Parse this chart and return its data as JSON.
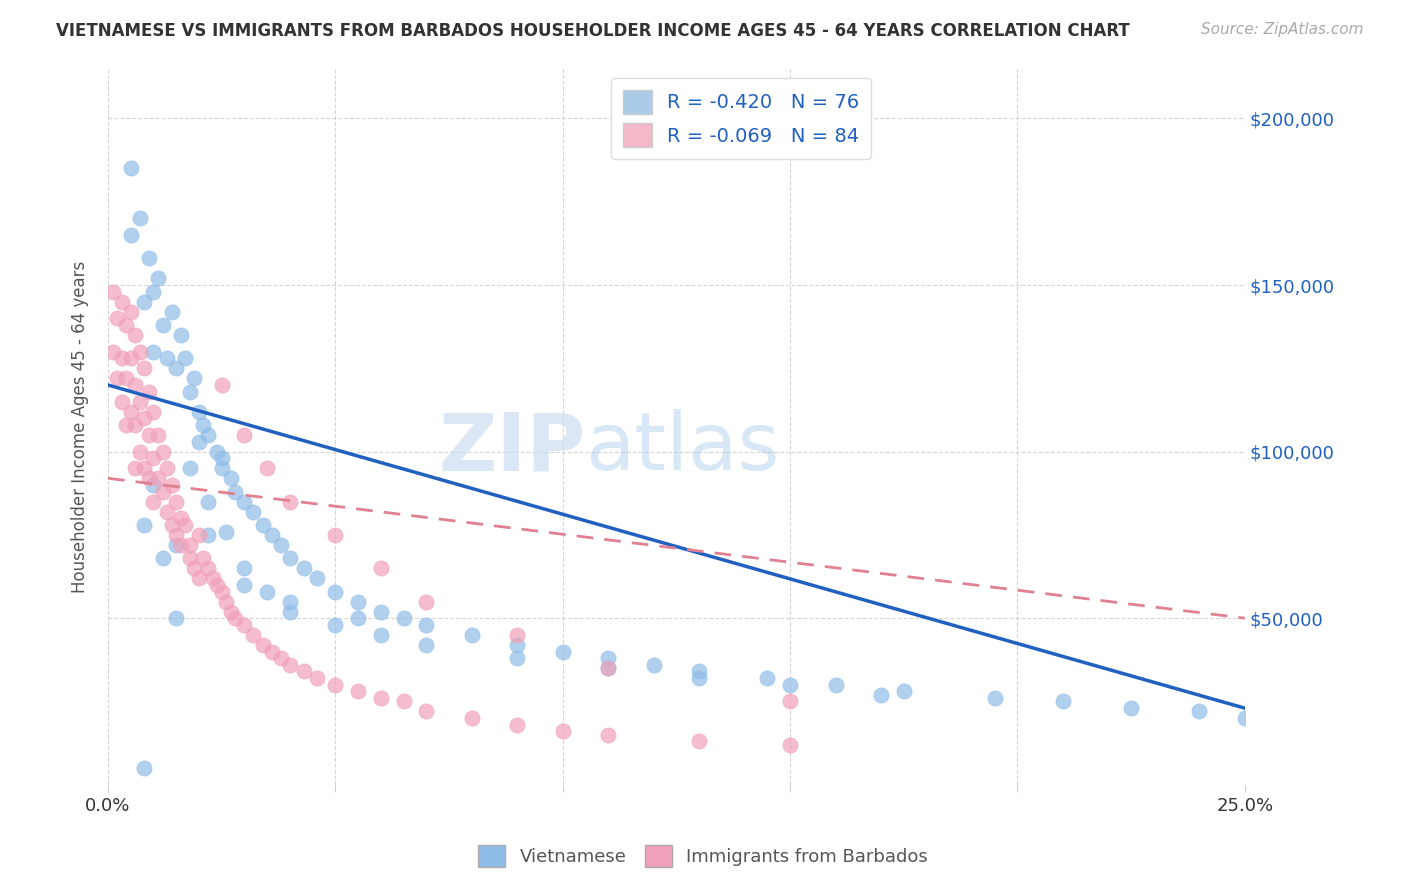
{
  "title": "VIETNAMESE VS IMMIGRANTS FROM BARBADOS HOUSEHOLDER INCOME AGES 45 - 64 YEARS CORRELATION CHART",
  "source": "Source: ZipAtlas.com",
  "ylabel": "Householder Income Ages 45 - 64 years",
  "watermark_zip": "ZIP",
  "watermark_atlas": "atlas",
  "legend_entries": [
    {
      "label": "Vietnamese",
      "color": "#aacce8",
      "R": "-0.420",
      "N": "76"
    },
    {
      "label": "Immigrants from Barbados",
      "color": "#f4b8c8",
      "R": "-0.069",
      "N": "84"
    }
  ],
  "viet_color": "#90bce8",
  "barb_color": "#f0a0b8",
  "viet_line_color": "#2060c0",
  "barb_line_color": "#e08090",
  "background": "#ffffff",
  "grid_color": "#cccccc",
  "ytick_labels": [
    "$50,000",
    "$100,000",
    "$150,000",
    "$200,000"
  ],
  "ytick_values": [
    50000,
    100000,
    150000,
    200000
  ],
  "xlim": [
    0.0,
    0.25
  ],
  "ylim": [
    0,
    215000
  ],
  "viet_line_x0": 0.0,
  "viet_line_y0": 120000,
  "viet_line_x1": 0.25,
  "viet_line_y1": 23000,
  "barb_line_x0": 0.0,
  "barb_line_y0": 92000,
  "barb_line_x1": 0.25,
  "barb_line_y1": 50000,
  "viet_x": [
    0.005,
    0.005,
    0.007,
    0.008,
    0.009,
    0.01,
    0.01,
    0.011,
    0.012,
    0.013,
    0.014,
    0.015,
    0.016,
    0.017,
    0.018,
    0.019,
    0.02,
    0.021,
    0.022,
    0.024,
    0.025,
    0.027,
    0.028,
    0.03,
    0.032,
    0.034,
    0.036,
    0.038,
    0.04,
    0.043,
    0.046,
    0.05,
    0.055,
    0.06,
    0.065,
    0.07,
    0.08,
    0.09,
    0.1,
    0.11,
    0.12,
    0.13,
    0.145,
    0.16,
    0.175,
    0.195,
    0.21,
    0.225,
    0.24,
    0.25,
    0.008,
    0.01,
    0.012,
    0.015,
    0.018,
    0.022,
    0.026,
    0.03,
    0.035,
    0.04,
    0.05,
    0.06,
    0.07,
    0.09,
    0.11,
    0.13,
    0.15,
    0.17,
    0.02,
    0.025,
    0.008,
    0.015,
    0.022,
    0.03,
    0.04,
    0.055
  ],
  "viet_y": [
    185000,
    165000,
    170000,
    145000,
    158000,
    148000,
    130000,
    152000,
    138000,
    128000,
    142000,
    125000,
    135000,
    128000,
    118000,
    122000,
    112000,
    108000,
    105000,
    100000,
    98000,
    92000,
    88000,
    85000,
    82000,
    78000,
    75000,
    72000,
    68000,
    65000,
    62000,
    58000,
    55000,
    52000,
    50000,
    48000,
    45000,
    42000,
    40000,
    38000,
    36000,
    34000,
    32000,
    30000,
    28000,
    26000,
    25000,
    23000,
    22000,
    20000,
    78000,
    90000,
    68000,
    72000,
    95000,
    85000,
    76000,
    65000,
    58000,
    52000,
    48000,
    45000,
    42000,
    38000,
    35000,
    32000,
    30000,
    27000,
    103000,
    95000,
    5000,
    50000,
    75000,
    60000,
    55000,
    50000
  ],
  "barb_x": [
    0.001,
    0.001,
    0.002,
    0.002,
    0.003,
    0.003,
    0.003,
    0.004,
    0.004,
    0.004,
    0.005,
    0.005,
    0.005,
    0.006,
    0.006,
    0.006,
    0.006,
    0.007,
    0.007,
    0.007,
    0.008,
    0.008,
    0.008,
    0.009,
    0.009,
    0.009,
    0.01,
    0.01,
    0.01,
    0.011,
    0.011,
    0.012,
    0.012,
    0.013,
    0.013,
    0.014,
    0.014,
    0.015,
    0.015,
    0.016,
    0.016,
    0.017,
    0.018,
    0.018,
    0.019,
    0.02,
    0.02,
    0.021,
    0.022,
    0.023,
    0.024,
    0.025,
    0.026,
    0.027,
    0.028,
    0.03,
    0.032,
    0.034,
    0.036,
    0.038,
    0.04,
    0.043,
    0.046,
    0.05,
    0.055,
    0.06,
    0.065,
    0.07,
    0.08,
    0.09,
    0.1,
    0.11,
    0.13,
    0.15,
    0.025,
    0.03,
    0.035,
    0.04,
    0.05,
    0.06,
    0.07,
    0.09,
    0.11,
    0.15
  ],
  "barb_y": [
    148000,
    130000,
    140000,
    122000,
    145000,
    128000,
    115000,
    138000,
    122000,
    108000,
    142000,
    128000,
    112000,
    135000,
    120000,
    108000,
    95000,
    130000,
    115000,
    100000,
    125000,
    110000,
    95000,
    118000,
    105000,
    92000,
    112000,
    98000,
    85000,
    105000,
    92000,
    100000,
    88000,
    95000,
    82000,
    90000,
    78000,
    85000,
    75000,
    80000,
    72000,
    78000,
    72000,
    68000,
    65000,
    75000,
    62000,
    68000,
    65000,
    62000,
    60000,
    58000,
    55000,
    52000,
    50000,
    48000,
    45000,
    42000,
    40000,
    38000,
    36000,
    34000,
    32000,
    30000,
    28000,
    26000,
    25000,
    22000,
    20000,
    18000,
    16000,
    15000,
    13000,
    12000,
    120000,
    105000,
    95000,
    85000,
    75000,
    65000,
    55000,
    45000,
    35000,
    25000
  ]
}
